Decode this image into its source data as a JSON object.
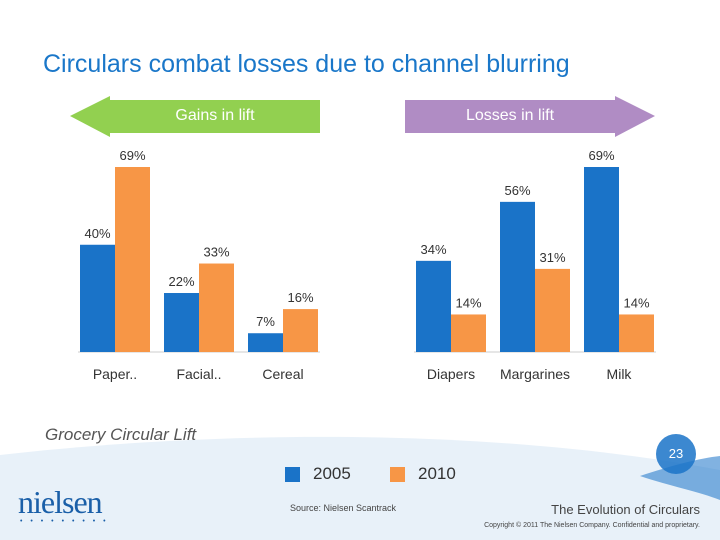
{
  "slide": {
    "title": "Circulars combat losses due to channel blurring",
    "subtitle": "Grocery Circular Lift",
    "page_number": "23",
    "footer_title": "The Evolution of Circulars",
    "copyright": "Copyright © 2011 The Nielsen Company. Confidential and proprietary.",
    "source": "Source:  Nielsen Scantrack",
    "logo_text": "nielsen",
    "logo_dots": "• • • • • • • • •"
  },
  "arrows": {
    "gains": {
      "label": "Gains in lift",
      "color": "#92d050"
    },
    "losses": {
      "label": "Losses in lift",
      "color": "#b08cc4"
    }
  },
  "colors": {
    "series_2005": "#1a73c8",
    "series_2010": "#f79646",
    "accent": "#1a77c9"
  },
  "chart_data": {
    "type": "bar",
    "title": "Grocery Circular Lift",
    "categories": [
      "Paper..",
      "Facial..",
      "Cereal",
      "Diapers",
      "Margarines",
      "Milk"
    ],
    "series": [
      {
        "name": "2005",
        "values": [
          40,
          22,
          7,
          34,
          56,
          69
        ],
        "labels": [
          "40%",
          "22%",
          "7%",
          "34%",
          "56%",
          "69%"
        ]
      },
      {
        "name": "2010",
        "values": [
          69,
          33,
          16,
          14,
          31,
          14
        ],
        "labels": [
          "69%",
          "33%",
          "16%",
          "14%",
          "31%",
          "14%"
        ]
      }
    ],
    "groups": [
      {
        "name": "Gains in lift",
        "categories": [
          "Paper..",
          "Facial..",
          "Cereal"
        ]
      },
      {
        "name": "Losses in lift",
        "categories": [
          "Diapers",
          "Margarines",
          "Milk"
        ]
      }
    ],
    "ylim": [
      0,
      75
    ],
    "grid": false,
    "legend": "bottom"
  }
}
